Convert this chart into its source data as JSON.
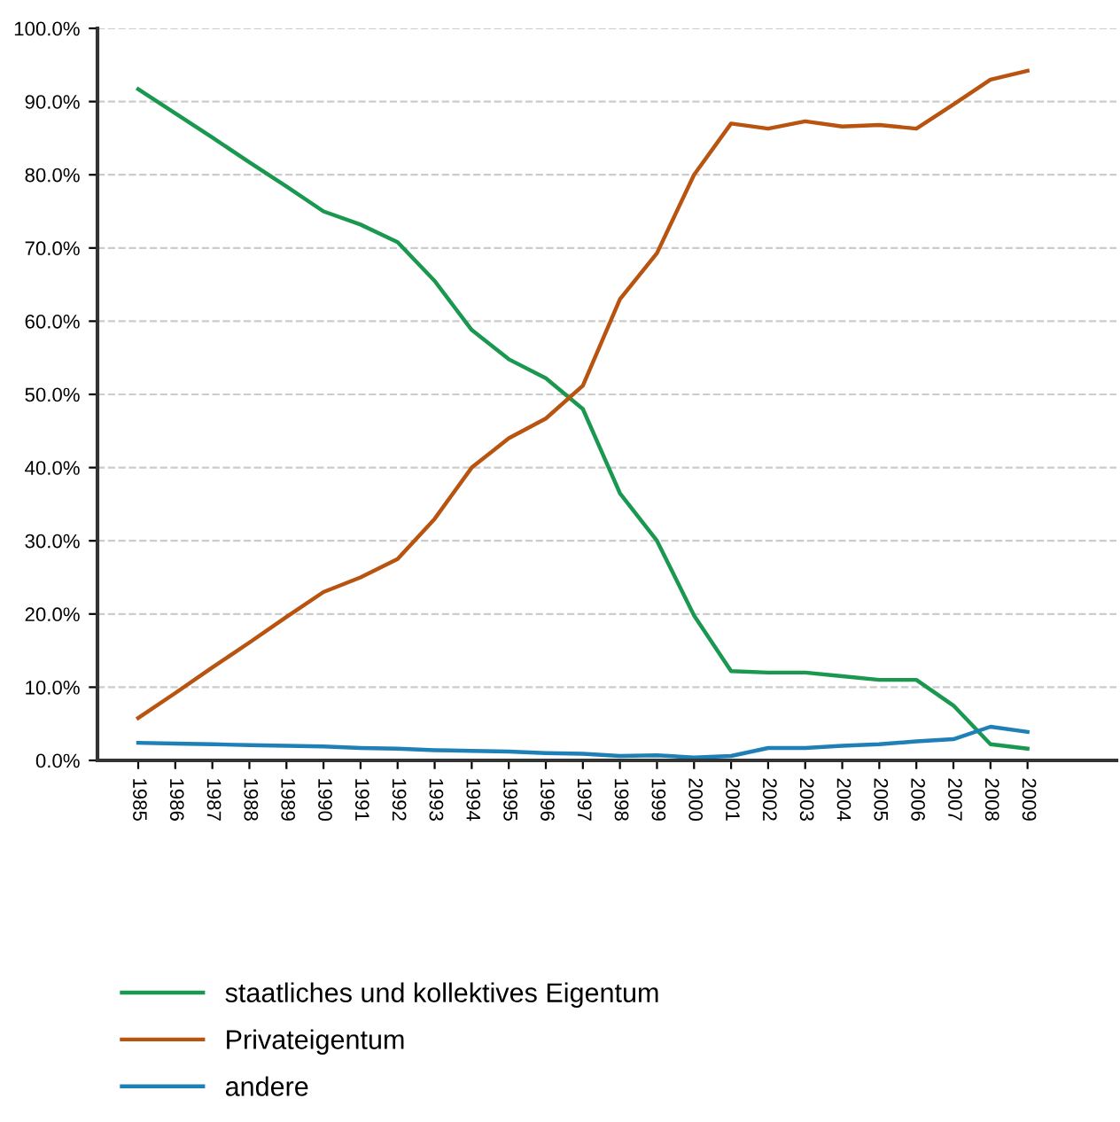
{
  "chart_data": {
    "type": "line",
    "categories": [
      "1985",
      "1986",
      "1987",
      "1988",
      "1989",
      "1990",
      "1991",
      "1992",
      "1993",
      "1994",
      "1995",
      "1996",
      "1997",
      "1998",
      "1999",
      "2000",
      "2001",
      "2002",
      "2003",
      "2004",
      "2005",
      "2006",
      "2007",
      "2008",
      "2009"
    ],
    "series": [
      {
        "name": "staatliches und kollektives Eigentum",
        "color": "#1a9850",
        "values": [
          91.7,
          88.4,
          85.1,
          81.7,
          78.4,
          75,
          73.2,
          70.8,
          65.5,
          58.8,
          54.8,
          52.2,
          48,
          36.5,
          30,
          19.8,
          12.2,
          12,
          12,
          11.5,
          11,
          11,
          7.5,
          2.2,
          1.6
        ]
      },
      {
        "name": "Privateigentum",
        "color": "#b85310",
        "values": [
          5.8,
          9.2,
          12.7,
          16.1,
          19.6,
          23,
          25,
          27.5,
          33,
          40,
          44,
          46.7,
          51.2,
          63,
          69.3,
          80,
          87,
          86.3,
          87.3,
          86.6,
          86.8,
          86.3,
          89.6,
          93,
          94.2
        ]
      },
      {
        "name": "andere",
        "color": "#1f80b8",
        "values": [
          2.4,
          2.3,
          2.2,
          2.1,
          2.0,
          1.9,
          1.7,
          1.6,
          1.4,
          1.3,
          1.2,
          1.0,
          0.9,
          0.6,
          0.7,
          0.4,
          0.6,
          1.7,
          1.7,
          2,
          2.2,
          2.6,
          2.9,
          4.6,
          3.9
        ]
      }
    ],
    "ylim": [
      0,
      100
    ],
    "yticks": [
      {
        "value": 0,
        "label": "0.0%"
      },
      {
        "value": 10,
        "label": "10.0%"
      },
      {
        "value": 20,
        "label": "20.0%"
      },
      {
        "value": 30,
        "label": "30.0%"
      },
      {
        "value": 40,
        "label": "40.0%"
      },
      {
        "value": 50,
        "label": "50.0%"
      },
      {
        "value": 60,
        "label": "60.0%"
      },
      {
        "value": 70,
        "label": "70.0%"
      },
      {
        "value": 80,
        "label": "80.0%"
      },
      {
        "value": 90,
        "label": "90.0%"
      },
      {
        "value": 100,
        "label": "100.0%"
      }
    ],
    "grid": "y",
    "legend": "bottom left",
    "marker": "none",
    "line_style": "solid"
  }
}
